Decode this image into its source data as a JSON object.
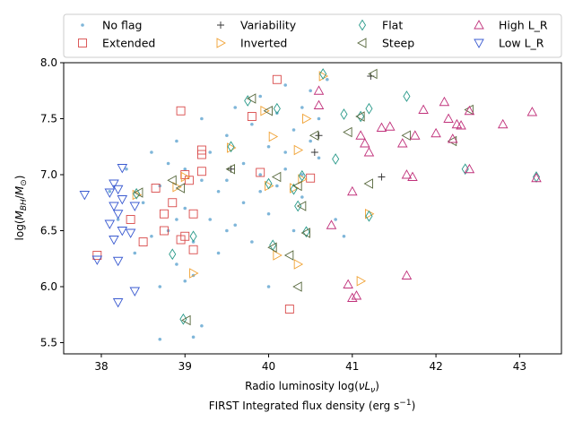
{
  "chart_data": {
    "type": "scatter",
    "title": "",
    "xlabel_main": "Radio luminosity log(νLᵥ)",
    "xlabel_secondary": "FIRST Integrated flux density (erg s⁻¹)",
    "ylabel": "log(M_BH/M⊙)",
    "xlim": [
      37.55,
      43.5
    ],
    "ylim": [
      5.4,
      8.0
    ],
    "x_ticks": [
      38,
      39,
      40,
      41,
      42,
      43
    ],
    "y_ticks": [
      5.5,
      6.0,
      6.5,
      7.0,
      7.5,
      8.0
    ],
    "x_tick_labels": [
      "38",
      "39",
      "40",
      "41",
      "42",
      "43"
    ],
    "y_tick_labels": [
      "5.5",
      "6.0",
      "6.5",
      "7.0",
      "7.5",
      "8.0"
    ],
    "legend_position": "top",
    "legend": [
      "No flag",
      "Extended",
      "Variability",
      "Inverted",
      "Flat",
      "Steep",
      "High L_R",
      "Low L_R"
    ],
    "series": [
      {
        "name": "No flag",
        "marker": "dot",
        "color": "#7fb6d9",
        "points": [
          [
            38.1,
            6.85
          ],
          [
            38.2,
            6.6
          ],
          [
            38.3,
            7.05
          ],
          [
            38.4,
            6.3
          ],
          [
            38.5,
            6.75
          ],
          [
            38.6,
            6.45
          ],
          [
            38.6,
            7.2
          ],
          [
            38.7,
            6.9
          ],
          [
            38.7,
            6.0
          ],
          [
            38.8,
            7.1
          ],
          [
            38.8,
            6.5
          ],
          [
            38.9,
            6.2
          ],
          [
            38.9,
            7.3
          ],
          [
            39.0,
            6.7
          ],
          [
            39.0,
            7.05
          ],
          [
            39.1,
            6.4
          ],
          [
            39.1,
            6.1
          ],
          [
            39.1,
            5.55
          ],
          [
            39.2,
            6.95
          ],
          [
            39.2,
            7.5
          ],
          [
            39.3,
            6.6
          ],
          [
            39.3,
            7.2
          ],
          [
            39.4,
            6.85
          ],
          [
            39.4,
            6.3
          ],
          [
            39.5,
            7.35
          ],
          [
            39.5,
            6.95
          ],
          [
            39.6,
            7.6
          ],
          [
            39.6,
            6.55
          ],
          [
            39.7,
            7.1
          ],
          [
            39.7,
            6.75
          ],
          [
            39.8,
            7.45
          ],
          [
            39.8,
            6.4
          ],
          [
            39.9,
            7.0
          ],
          [
            39.9,
            7.7
          ],
          [
            40.0,
            6.65
          ],
          [
            40.0,
            7.25
          ],
          [
            40.1,
            7.55
          ],
          [
            40.1,
            6.9
          ],
          [
            40.2,
            7.8
          ],
          [
            40.2,
            7.05
          ],
          [
            40.3,
            6.5
          ],
          [
            40.3,
            7.4
          ],
          [
            40.4,
            7.6
          ],
          [
            40.4,
            6.8
          ],
          [
            40.5,
            7.3
          ],
          [
            40.5,
            7.75
          ],
          [
            40.6,
            7.5
          ],
          [
            40.7,
            7.85
          ],
          [
            40.8,
            6.6
          ],
          [
            40.9,
            6.45
          ],
          [
            38.7,
            5.53
          ],
          [
            39.2,
            5.65
          ],
          [
            40.0,
            6.0
          ],
          [
            40.2,
            7.2
          ],
          [
            39.9,
            6.85
          ],
          [
            40.4,
            7.0
          ],
          [
            40.6,
            7.15
          ],
          [
            39.0,
            6.05
          ],
          [
            38.9,
            6.6
          ],
          [
            39.5,
            6.5
          ]
        ]
      },
      {
        "name": "Extended",
        "marker": "square",
        "color": "#d94a4a",
        "points": [
          [
            37.95,
            6.28
          ],
          [
            38.35,
            6.6
          ],
          [
            38.5,
            6.4
          ],
          [
            38.65,
            6.88
          ],
          [
            38.75,
            6.5
          ],
          [
            38.75,
            6.65
          ],
          [
            38.85,
            6.75
          ],
          [
            38.95,
            7.57
          ],
          [
            38.95,
            6.42
          ],
          [
            39.0,
            6.45
          ],
          [
            39.0,
            7.0
          ],
          [
            39.1,
            6.33
          ],
          [
            39.1,
            6.65
          ],
          [
            39.2,
            7.18
          ],
          [
            39.2,
            7.22
          ],
          [
            39.2,
            7.03
          ],
          [
            39.8,
            7.52
          ],
          [
            39.9,
            7.02
          ],
          [
            40.1,
            7.85
          ],
          [
            40.25,
            5.8
          ],
          [
            40.5,
            6.97
          ],
          [
            39.05,
            6.95
          ]
        ]
      },
      {
        "name": "Variability",
        "marker": "plus",
        "color": "#333333",
        "points": [
          [
            40.55,
            7.2
          ],
          [
            41.35,
            6.98
          ],
          [
            41.22,
            7.88
          ],
          [
            40.6,
            7.35
          ],
          [
            39.55,
            7.05
          ]
        ]
      },
      {
        "name": "Inverted",
        "marker": "tri-right",
        "color": "#f0a030",
        "points": [
          [
            38.42,
            6.82
          ],
          [
            38.9,
            6.89
          ],
          [
            39.0,
            6.98
          ],
          [
            39.1,
            6.12
          ],
          [
            39.55,
            7.24
          ],
          [
            39.95,
            7.57
          ],
          [
            40.05,
            7.34
          ],
          [
            40.1,
            6.28
          ],
          [
            40.35,
            6.2
          ],
          [
            40.4,
            6.96
          ],
          [
            40.35,
            7.22
          ],
          [
            40.45,
            7.5
          ],
          [
            40.65,
            7.88
          ],
          [
            41.1,
            6.05
          ],
          [
            41.2,
            6.65
          ],
          [
            40.0,
            6.9
          ],
          [
            40.3,
            6.88
          ]
        ]
      },
      {
        "name": "Flat",
        "marker": "diamond",
        "color": "#2a9a8a",
        "points": [
          [
            38.42,
            6.83
          ],
          [
            38.85,
            6.29
          ],
          [
            38.98,
            5.71
          ],
          [
            39.1,
            6.45
          ],
          [
            39.55,
            7.25
          ],
          [
            39.75,
            7.66
          ],
          [
            40.1,
            7.59
          ],
          [
            40.0,
            6.92
          ],
          [
            40.05,
            6.37
          ],
          [
            40.3,
            6.87
          ],
          [
            40.35,
            6.72
          ],
          [
            40.45,
            6.49
          ],
          [
            40.4,
            6.99
          ],
          [
            40.9,
            7.54
          ],
          [
            41.2,
            7.59
          ],
          [
            40.8,
            7.14
          ],
          [
            41.2,
            6.63
          ],
          [
            41.1,
            7.52
          ],
          [
            41.65,
            7.7
          ],
          [
            42.35,
            7.05
          ],
          [
            43.2,
            6.98
          ],
          [
            40.65,
            7.9
          ]
        ]
      },
      {
        "name": "Steep",
        "marker": "tri-left",
        "color": "#55663a",
        "points": [
          [
            38.45,
            6.84
          ],
          [
            38.95,
            6.88
          ],
          [
            39.02,
            5.7
          ],
          [
            39.55,
            7.05
          ],
          [
            39.8,
            7.68
          ],
          [
            40.0,
            7.57
          ],
          [
            40.1,
            6.98
          ],
          [
            40.05,
            6.35
          ],
          [
            40.25,
            6.28
          ],
          [
            40.35,
            6.0
          ],
          [
            40.4,
            6.72
          ],
          [
            40.45,
            6.48
          ],
          [
            40.35,
            6.9
          ],
          [
            40.55,
            7.35
          ],
          [
            40.95,
            7.38
          ],
          [
            41.1,
            7.52
          ],
          [
            41.25,
            7.9
          ],
          [
            41.2,
            6.92
          ],
          [
            41.65,
            7.35
          ],
          [
            42.2,
            7.3
          ],
          [
            42.4,
            7.58
          ],
          [
            38.85,
            6.95
          ]
        ]
      },
      {
        "name": "High L_R",
        "marker": "tri-up",
        "color": "#c0307a",
        "points": [
          [
            40.6,
            7.75
          ],
          [
            40.6,
            7.62
          ],
          [
            40.75,
            6.55
          ],
          [
            40.95,
            6.02
          ],
          [
            41.0,
            5.9
          ],
          [
            41.05,
            5.92
          ],
          [
            41.0,
            6.85
          ],
          [
            41.1,
            7.35
          ],
          [
            41.15,
            7.28
          ],
          [
            41.2,
            7.2
          ],
          [
            41.35,
            7.42
          ],
          [
            41.45,
            7.43
          ],
          [
            41.6,
            7.28
          ],
          [
            41.65,
            7.0
          ],
          [
            41.65,
            6.1
          ],
          [
            41.72,
            6.98
          ],
          [
            41.75,
            7.35
          ],
          [
            41.85,
            7.58
          ],
          [
            42.0,
            7.37
          ],
          [
            42.1,
            7.65
          ],
          [
            42.15,
            7.5
          ],
          [
            42.2,
            7.32
          ],
          [
            42.25,
            7.45
          ],
          [
            42.3,
            7.44
          ],
          [
            42.4,
            7.57
          ],
          [
            42.4,
            7.05
          ],
          [
            42.8,
            7.45
          ],
          [
            43.15,
            7.56
          ],
          [
            43.2,
            6.97
          ]
        ]
      },
      {
        "name": "Low L_R",
        "marker": "tri-down",
        "color": "#3a5ad0",
        "points": [
          [
            37.8,
            6.82
          ],
          [
            37.95,
            6.24
          ],
          [
            38.1,
            6.84
          ],
          [
            38.1,
            6.56
          ],
          [
            38.15,
            6.42
          ],
          [
            38.15,
            6.92
          ],
          [
            38.2,
            6.87
          ],
          [
            38.2,
            6.65
          ],
          [
            38.2,
            6.23
          ],
          [
            38.2,
            5.86
          ],
          [
            38.25,
            6.78
          ],
          [
            38.25,
            6.5
          ],
          [
            38.25,
            7.06
          ],
          [
            38.35,
            6.48
          ],
          [
            38.4,
            6.72
          ],
          [
            38.4,
            5.96
          ],
          [
            38.15,
            6.72
          ]
        ]
      }
    ]
  }
}
